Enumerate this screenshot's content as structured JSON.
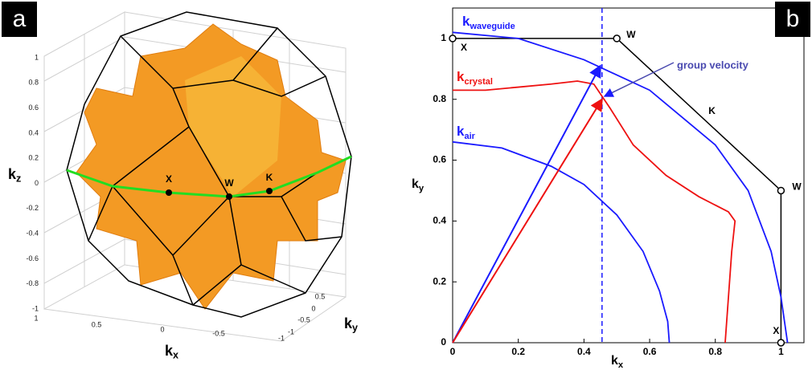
{
  "panel_a": {
    "label": "a",
    "points": [
      "X",
      "W",
      "K"
    ],
    "zlabel": {
      "text": "k",
      "sub": "z"
    },
    "xlabel": {
      "text": "k",
      "sub": "x"
    },
    "ylabel": {
      "text": "k",
      "sub": "y"
    },
    "zticks": [
      1,
      0.8,
      0.6,
      0.4,
      0.2,
      0,
      -0.2,
      -0.4,
      -0.6,
      -0.8,
      -1
    ],
    "xticks": [
      1,
      0.5,
      0,
      -0.5,
      -1
    ],
    "yticks": [
      0.5,
      0,
      -0.5,
      -1
    ]
  },
  "chart_data": {
    "type": "line",
    "label": "b",
    "xlabel": {
      "text": "k",
      "sub": "x"
    },
    "ylabel": {
      "text": "k",
      "sub": "y"
    },
    "xlim": [
      0,
      1.07
    ],
    "ylim": [
      0,
      1.1
    ],
    "xticks": [
      0,
      0.2,
      0.4,
      0.6,
      0.8,
      1
    ],
    "yticks": [
      0,
      0.2,
      0.4,
      0.6,
      0.8,
      1
    ],
    "vline": 0.455,
    "zone": {
      "color": "#000000",
      "x": [
        0,
        0.5,
        0.75,
        1,
        1
      ],
      "values": [
        1,
        1,
        0.75,
        0.5,
        0
      ],
      "labels": [
        "X",
        "W",
        "K",
        "W",
        "X"
      ]
    },
    "series": [
      {
        "name": "k",
        "subscript": "waveguide",
        "color": "#1a1aff",
        "x": [
          0,
          0.2,
          0.4,
          0.6,
          0.8,
          0.9,
          0.97,
          1.0,
          1.02
        ],
        "values": [
          1.02,
          1.0,
          0.93,
          0.83,
          0.65,
          0.5,
          0.3,
          0.15,
          0
        ]
      },
      {
        "name": "k",
        "subscript": "crystal",
        "color": "#ee1111",
        "x": [
          0,
          0.1,
          0.2,
          0.3,
          0.38,
          0.43,
          0.48,
          0.55,
          0.65,
          0.75,
          0.84,
          0.86,
          0.85,
          0.84,
          0.83
        ],
        "values": [
          0.83,
          0.83,
          0.84,
          0.85,
          0.86,
          0.85,
          0.77,
          0.65,
          0.55,
          0.48,
          0.43,
          0.4,
          0.3,
          0.15,
          0
        ]
      },
      {
        "name": "k",
        "subscript": "air",
        "color": "#1a1aff",
        "x": [
          0,
          0.15,
          0.3,
          0.4,
          0.5,
          0.58,
          0.63,
          0.655,
          0.66
        ],
        "values": [
          0.66,
          0.64,
          0.58,
          0.52,
          0.42,
          0.3,
          0.17,
          0.07,
          0
        ]
      }
    ],
    "arrows": [
      {
        "color": "#1a1aff",
        "x": [
          0,
          0.45
        ],
        "values": [
          0,
          0.91
        ]
      },
      {
        "color": "#ee1111",
        "x": [
          0,
          0.455
        ],
        "values": [
          0,
          0.8
        ]
      }
    ],
    "annotation": "group velocity"
  }
}
